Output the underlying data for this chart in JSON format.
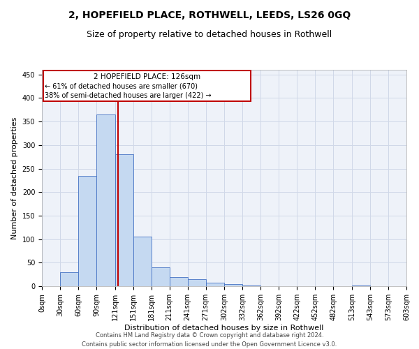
{
  "title": "2, HOPEFIELD PLACE, ROTHWELL, LEEDS, LS26 0GQ",
  "subtitle": "Size of property relative to detached houses in Rothwell",
  "xlabel": "Distribution of detached houses by size in Rothwell",
  "ylabel": "Number of detached properties",
  "footer_line1": "Contains HM Land Registry data © Crown copyright and database right 2024.",
  "footer_line2": "Contains public sector information licensed under the Open Government Licence v3.0.",
  "bar_edges": [
    0,
    30,
    60,
    90,
    121,
    151,
    181,
    211,
    241,
    271,
    302,
    332,
    362,
    392,
    422,
    452,
    482,
    513,
    543,
    573,
    603
  ],
  "bar_heights": [
    0,
    30,
    235,
    365,
    280,
    106,
    40,
    20,
    15,
    7,
    4,
    1,
    0,
    0,
    0,
    0,
    0,
    1,
    0,
    0
  ],
  "bar_color": "#c5d9f1",
  "bar_edge_color": "#4472c4",
  "property_size": 126,
  "vline_color": "#c00000",
  "annotation_text_line1": "2 HOPEFIELD PLACE: 126sqm",
  "annotation_text_line2": "← 61% of detached houses are smaller (670)",
  "annotation_text_line3": "38% of semi-detached houses are larger (422) →",
  "annotation_box_color": "#c00000",
  "annotation_fill": "#ffffff",
  "ylim": [
    0,
    460
  ],
  "xlim": [
    0,
    603
  ],
  "tick_labels": [
    "0sqm",
    "30sqm",
    "60sqm",
    "90sqm",
    "121sqm",
    "151sqm",
    "181sqm",
    "211sqm",
    "241sqm",
    "271sqm",
    "302sqm",
    "332sqm",
    "362sqm",
    "392sqm",
    "422sqm",
    "452sqm",
    "482sqm",
    "513sqm",
    "543sqm",
    "573sqm",
    "603sqm"
  ],
  "grid_color": "#d0d8e8",
  "bg_color": "#eef2f9",
  "title_fontsize": 10,
  "subtitle_fontsize": 9,
  "axis_label_fontsize": 8,
  "tick_fontsize": 7,
  "annotation_fontsize_line1": 7.5,
  "annotation_fontsize_lines": 7,
  "footer_fontsize": 6,
  "yticks": [
    0,
    50,
    100,
    150,
    200,
    250,
    300,
    350,
    400,
    450
  ]
}
